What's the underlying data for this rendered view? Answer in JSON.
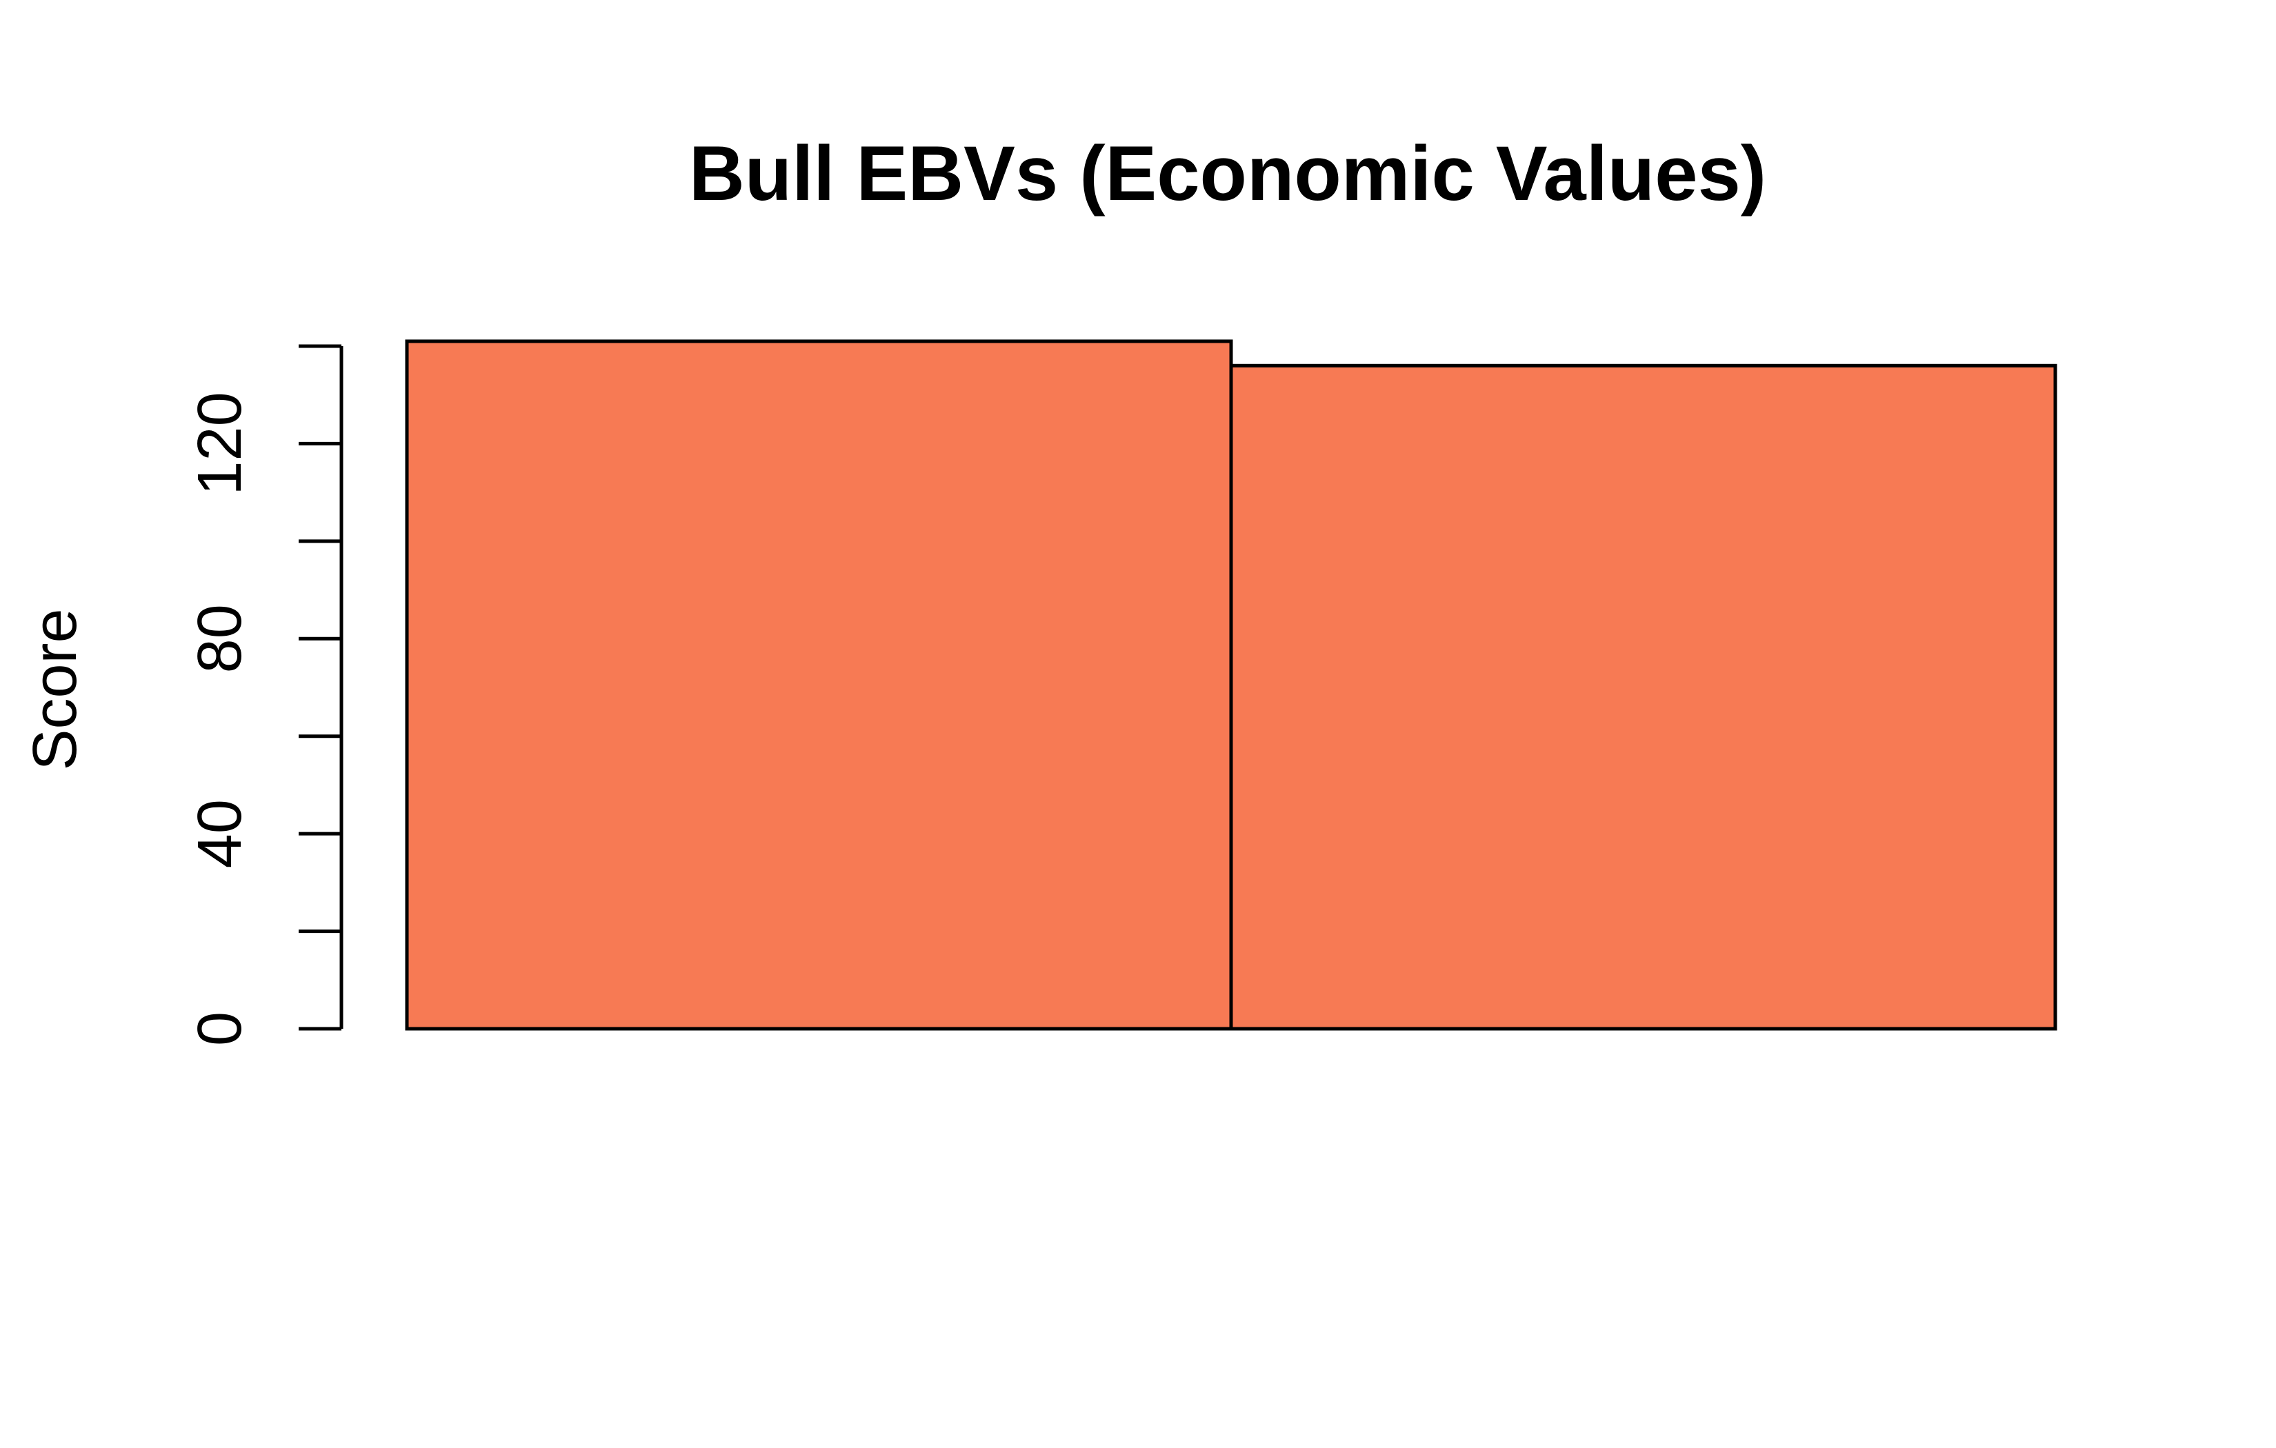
{
  "chart_data": {
    "type": "bar",
    "title": "Bull EBVs (Economic Values)",
    "xlabel": "",
    "ylabel": "Score",
    "categories": [
      "",
      ""
    ],
    "values": [
      141,
      136
    ],
    "ylim": [
      0,
      140
    ],
    "y_ticks": [
      0,
      20,
      40,
      60,
      80,
      100,
      120,
      140
    ],
    "y_tick_labels": [
      "0",
      "",
      "40",
      "",
      "80",
      "",
      "120",
      ""
    ],
    "grid": false,
    "legend": "none",
    "colors": {
      "bar_fill": "#F77A54",
      "bar_stroke": "#000000",
      "axis": "#000000"
    }
  }
}
